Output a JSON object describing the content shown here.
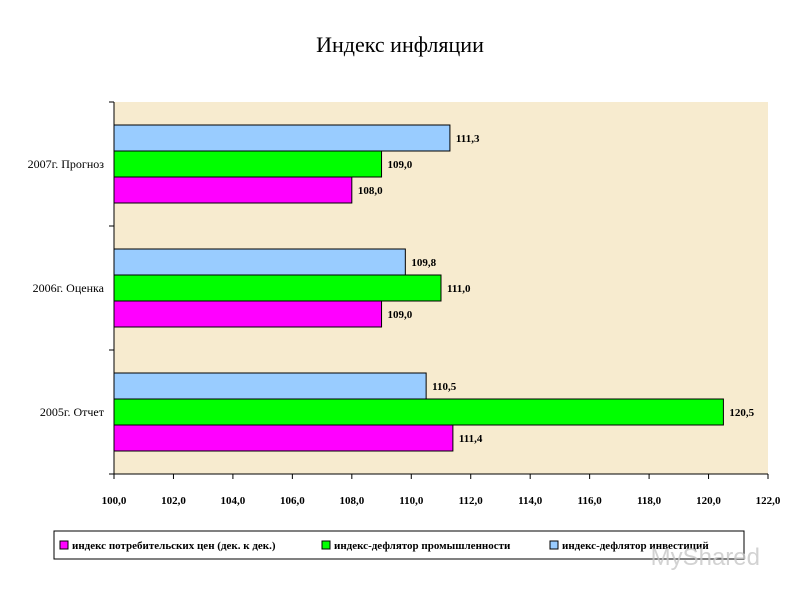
{
  "title": "Индекс инфляции",
  "watermark": "MyShared",
  "colors": {
    "plot_bg": "#f7ebcf",
    "cpi": "#ff00ff",
    "industrial": "#00ff00",
    "investment": "#99ccff"
  },
  "chart_data": {
    "type": "bar",
    "orientation": "horizontal",
    "title": "Индекс инфляции",
    "categories": [
      "2005г. Отчет",
      "2006г. Оценка",
      "2007г. Прогноз"
    ],
    "series": [
      {
        "name": "индекс потребительских цен (дек. к дек.)",
        "values": [
          111.4,
          109.0,
          108.0
        ],
        "value_labels": [
          "111,4",
          "109,0",
          "108,0"
        ]
      },
      {
        "name": "индекс-дефлятор промышленности",
        "values": [
          120.5,
          111.0,
          109.0
        ],
        "value_labels": [
          "120,5",
          "111,0",
          "109,0"
        ]
      },
      {
        "name": "индекс-дефлятор инвестиций",
        "values": [
          110.5,
          109.8,
          111.3
        ],
        "value_labels": [
          "110,5",
          "109,8",
          "111,3"
        ]
      }
    ],
    "xlim": [
      100,
      122
    ],
    "x_ticks": [
      "100,0",
      "102,0",
      "104,0",
      "106,0",
      "108,0",
      "110,0",
      "112,0",
      "114,0",
      "116,0",
      "118,0",
      "120,0",
      "122,0"
    ],
    "grid": false,
    "legend_position": "bottom"
  }
}
